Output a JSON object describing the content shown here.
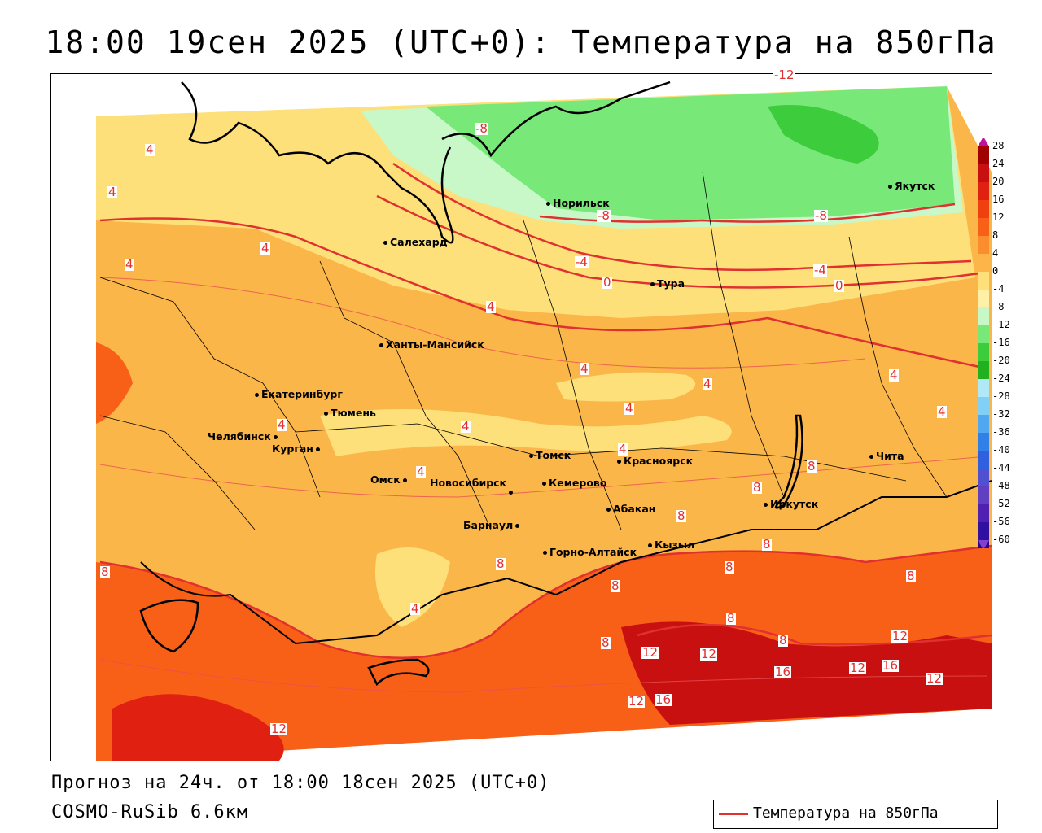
{
  "title": "18:00 19сен 2025 (UTC+0): Температура на 850гПа",
  "footer": {
    "forecast": "Прогноз на 24ч. от 18:00 18сен 2025 (UTC+0)",
    "model": "COSMO-RuSib 6.6км"
  },
  "legend": {
    "label": "Температура на 850гПа",
    "line_color": "#e03030"
  },
  "colorbar": {
    "ticks": [
      "28",
      "24",
      "20",
      "16",
      "12",
      "8",
      "4",
      "0",
      "-4",
      "-8",
      "-12",
      "-16",
      "-20",
      "-24",
      "-28",
      "-32",
      "-36",
      "-40",
      "-44",
      "-48",
      "-52",
      "-56",
      "-60"
    ],
    "colors": [
      "#a00000",
      "#c81010",
      "#e02010",
      "#f04010",
      "#f86018",
      "#fc8c30",
      "#fdb448",
      "#fde07a",
      "#fff0a8",
      "#c8f7c8",
      "#78e878",
      "#3ccc3c",
      "#20b020",
      "#b0e8f8",
      "#80d0f8",
      "#50a8f0",
      "#3080e8",
      "#3060e0",
      "#5050d0",
      "#6040c0",
      "#5020b0",
      "#3010a0",
      "#300090"
    ]
  },
  "cities": [
    {
      "name": "Норильск"
    },
    {
      "name": "Якутск"
    },
    {
      "name": "Салехард"
    },
    {
      "name": "Тура"
    },
    {
      "name": "Ханты-Мансийск"
    },
    {
      "name": "Екатеринбург"
    },
    {
      "name": "Тюмень"
    },
    {
      "name": "Челябинск"
    },
    {
      "name": "Курган"
    },
    {
      "name": "Томск"
    },
    {
      "name": "Красноярск"
    },
    {
      "name": "Чита"
    },
    {
      "name": "Омск"
    },
    {
      "name": "Новосибирск"
    },
    {
      "name": "Кемерово"
    },
    {
      "name": "Барнаул"
    },
    {
      "name": "Абакан"
    },
    {
      "name": "Иркутск"
    },
    {
      "name": "Горно-Алтайск"
    },
    {
      "name": "Кызыл"
    }
  ],
  "contour_labels": [
    "-12",
    "-8",
    "-8",
    "-8",
    "-4",
    "-4",
    "0",
    "0",
    "4",
    "4",
    "4",
    "4",
    "4",
    "4",
    "4",
    "4",
    "4",
    "4",
    "4",
    "4",
    "4",
    "4",
    "4",
    "8",
    "8",
    "8",
    "8",
    "8",
    "8",
    "8",
    "8",
    "8",
    "8",
    "8",
    "8",
    "12",
    "12",
    "12",
    "12",
    "12",
    "12",
    "12",
    "16",
    "16",
    "16"
  ]
}
